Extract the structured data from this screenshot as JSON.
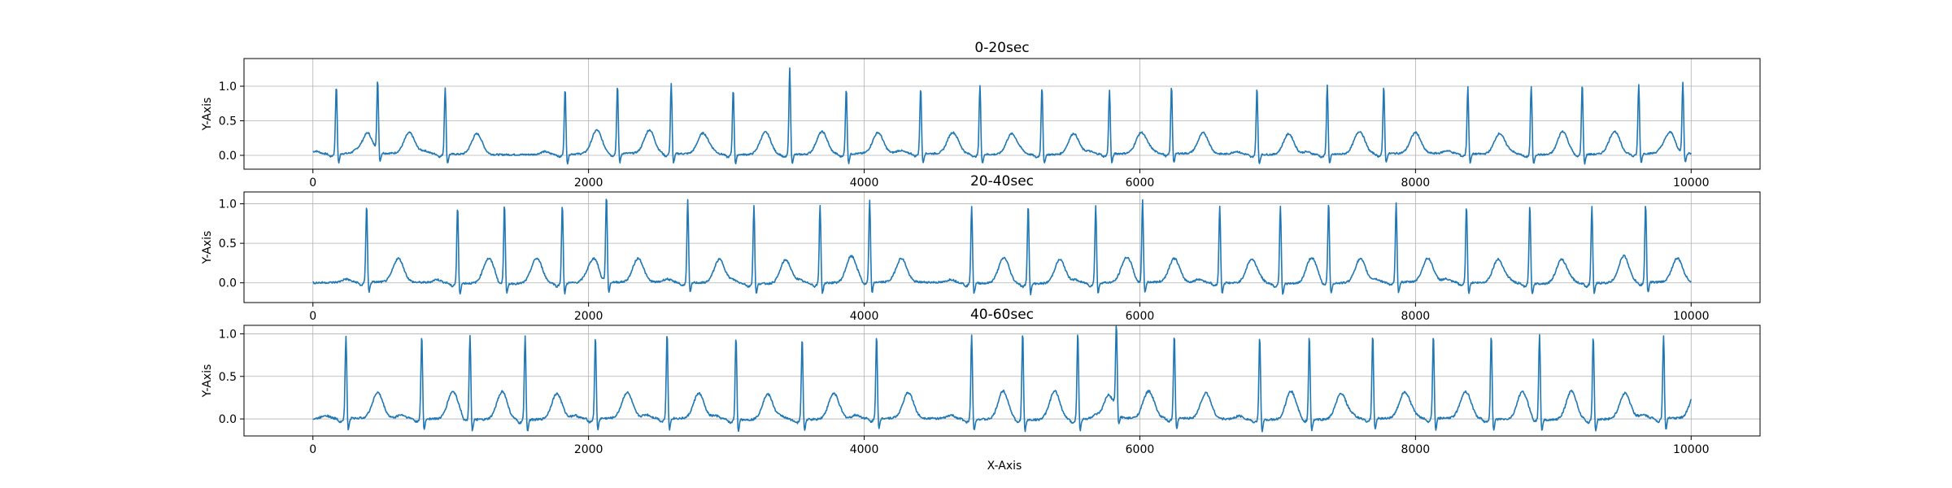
{
  "figure": {
    "xlabel": "X-Axis"
  },
  "chart_data": [
    {
      "type": "line",
      "title": "0-20sec",
      "xlabel": "",
      "ylabel": "Y-Axis",
      "xlim": [
        -500,
        10500
      ],
      "ylim": [
        -0.2,
        1.4
      ],
      "xticks": [
        0,
        2000,
        4000,
        6000,
        8000,
        10000
      ],
      "yticks": [
        0.0,
        0.5,
        1.0
      ],
      "grid": true,
      "line_color": "#1f77b4",
      "baseline": 0.02,
      "r_peaks": [
        {
          "x": 170,
          "y": 1.04
        },
        {
          "x": 470,
          "y": 1.06
        },
        {
          "x": 960,
          "y": 1.02
        },
        {
          "x": 1830,
          "y": 1.01
        },
        {
          "x": 2210,
          "y": 1.03
        },
        {
          "x": 2600,
          "y": 1.06
        },
        {
          "x": 3050,
          "y": 1.0
        },
        {
          "x": 3460,
          "y": 1.32
        },
        {
          "x": 3870,
          "y": 1.01
        },
        {
          "x": 4410,
          "y": 1.01
        },
        {
          "x": 4840,
          "y": 1.05
        },
        {
          "x": 5290,
          "y": 1.04
        },
        {
          "x": 5780,
          "y": 0.98
        },
        {
          "x": 6230,
          "y": 1.03
        },
        {
          "x": 6850,
          "y": 1.02
        },
        {
          "x": 7360,
          "y": 1.05
        },
        {
          "x": 7770,
          "y": 1.03
        },
        {
          "x": 8380,
          "y": 1.02
        },
        {
          "x": 8840,
          "y": 1.04
        },
        {
          "x": 9210,
          "y": 1.08
        },
        {
          "x": 9620,
          "y": 1.05
        },
        {
          "x": 9940,
          "y": 1.06
        }
      ]
    },
    {
      "type": "line",
      "title": "20-40sec",
      "xlabel": "",
      "ylabel": "Y-Axis",
      "xlim": [
        -500,
        10500
      ],
      "ylim": [
        -0.25,
        1.15
      ],
      "xticks": [
        0,
        2000,
        4000,
        6000,
        8000,
        10000
      ],
      "yticks": [
        0.0,
        0.5,
        1.0
      ],
      "grid": true,
      "line_color": "#1f77b4",
      "baseline": 0.0,
      "r_peaks": [
        {
          "x": 390,
          "y": 1.02
        },
        {
          "x": 1050,
          "y": 1.0
        },
        {
          "x": 1390,
          "y": 1.05
        },
        {
          "x": 1810,
          "y": 1.03
        },
        {
          "x": 2130,
          "y": 1.12
        },
        {
          "x": 2720,
          "y": 1.08
        },
        {
          "x": 3200,
          "y": 1.02
        },
        {
          "x": 3680,
          "y": 1.02
        },
        {
          "x": 4040,
          "y": 1.06
        },
        {
          "x": 4780,
          "y": 1.01
        },
        {
          "x": 5190,
          "y": 1.04
        },
        {
          "x": 5680,
          "y": 1.02
        },
        {
          "x": 6020,
          "y": 1.06
        },
        {
          "x": 6580,
          "y": 1.01
        },
        {
          "x": 7020,
          "y": 1.02
        },
        {
          "x": 7370,
          "y": 1.07
        },
        {
          "x": 7860,
          "y": 1.03
        },
        {
          "x": 8370,
          "y": 1.02
        },
        {
          "x": 8830,
          "y": 1.03
        },
        {
          "x": 9280,
          "y": 1.01
        },
        {
          "x": 9670,
          "y": 1.03
        }
      ]
    },
    {
      "type": "line",
      "title": "40-60sec",
      "xlabel": "X-Axis",
      "ylabel": "Y-Axis",
      "xlim": [
        -500,
        10500
      ],
      "ylim": [
        -0.2,
        1.1
      ],
      "xticks": [
        0,
        2000,
        4000,
        6000,
        8000,
        10000
      ],
      "yticks": [
        0.0,
        0.5,
        1.0
      ],
      "grid": true,
      "line_color": "#1f77b4",
      "baseline": 0.0,
      "r_peaks": [
        {
          "x": 240,
          "y": 1.0
        },
        {
          "x": 790,
          "y": 1.02
        },
        {
          "x": 1140,
          "y": 1.03
        },
        {
          "x": 1540,
          "y": 1.02
        },
        {
          "x": 2050,
          "y": 1.01
        },
        {
          "x": 2570,
          "y": 1.04
        },
        {
          "x": 3070,
          "y": 1.02
        },
        {
          "x": 3550,
          "y": 1.0
        },
        {
          "x": 4090,
          "y": 1.02
        },
        {
          "x": 4780,
          "y": 1.02
        },
        {
          "x": 5150,
          "y": 1.06
        },
        {
          "x": 5550,
          "y": 1.06
        },
        {
          "x": 5830,
          "y": 1.02
        },
        {
          "x": 6250,
          "y": 1.02
        },
        {
          "x": 6870,
          "y": 1.01
        },
        {
          "x": 7230,
          "y": 1.02
        },
        {
          "x": 7690,
          "y": 1.03
        },
        {
          "x": 8130,
          "y": 1.02
        },
        {
          "x": 8550,
          "y": 1.02
        },
        {
          "x": 8900,
          "y": 1.04
        },
        {
          "x": 9290,
          "y": 1.02
        },
        {
          "x": 9800,
          "y": 1.01
        }
      ]
    }
  ]
}
